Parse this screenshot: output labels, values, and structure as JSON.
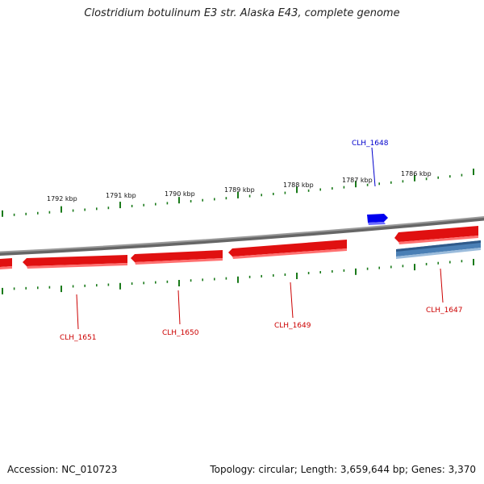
{
  "title": "Clostridium botulinum E3 str. Alaska E43, complete genome",
  "footer": {
    "accession": "Accession: NC_010723",
    "topology": "Topology: circular; Length: 3,659,644 bp; Genes: 3,370"
  },
  "colors": {
    "forward_gene": "#0000ee",
    "reverse_gene": "#ee1111",
    "rna_gene": "#4a7fb5",
    "tick": "#1a7a1a",
    "backbone": "#888888"
  },
  "scale_labels": [
    "1792 kbp",
    "1791 kbp",
    "1790 kbp",
    "1789 kbp",
    "1788 kbp",
    "1787 kbp",
    "1786 kbp"
  ],
  "genes": [
    {
      "name": "CLH_1648",
      "strand": "forward"
    },
    {
      "name": "CLH_1647",
      "strand": "reverse"
    },
    {
      "name": "CLH_1649",
      "strand": "reverse"
    },
    {
      "name": "CLH_1650",
      "strand": "reverse"
    },
    {
      "name": "CLH_1651",
      "strand": "reverse"
    }
  ]
}
